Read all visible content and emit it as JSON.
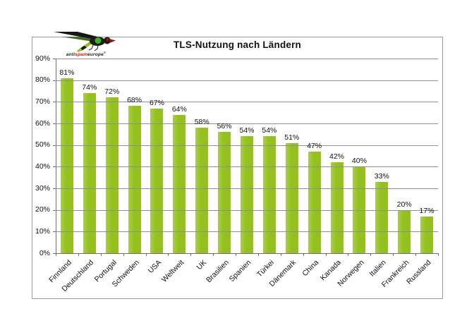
{
  "logo": {
    "anti": "anti",
    "spam": "spam",
    "europe": "europe",
    "reg": "®",
    "spam_color": "#e2001a",
    "text_color": "#1d1d1b"
  },
  "chart_data": {
    "type": "bar",
    "title": "TLS-Nutzung nach Ländern",
    "categories": [
      "Finnland",
      "Deutschland",
      "Portugal",
      "Schweden",
      "USA",
      "Weltweit",
      "UK",
      "Brasilien",
      "Spanien",
      "Türkei",
      "Dänemark",
      "China",
      "Kanada",
      "Norwegen",
      "Italien",
      "Frankreich",
      "Russland"
    ],
    "values": [
      81,
      74,
      72,
      68,
      67,
      64,
      58,
      56,
      54,
      54,
      51,
      47,
      42,
      40,
      33,
      20,
      17
    ],
    "value_suffix": "%",
    "xlabel": "",
    "ylabel": "",
    "ylim": [
      0,
      90
    ],
    "ytick_step": 10,
    "ytick_labels": [
      "0%",
      "10%",
      "20%",
      "30%",
      "40%",
      "50%",
      "60%",
      "70%",
      "80%",
      "90%"
    ],
    "grid": "horizontal-over-bars",
    "legend": "none",
    "bar_color": "#94c11f",
    "bar_color_light": "#a9ce4b",
    "grid_color": "#8f8f8f",
    "axis_color": "#707070",
    "frame_border_color": "#9a9a9a",
    "label_color": "#111111"
  }
}
